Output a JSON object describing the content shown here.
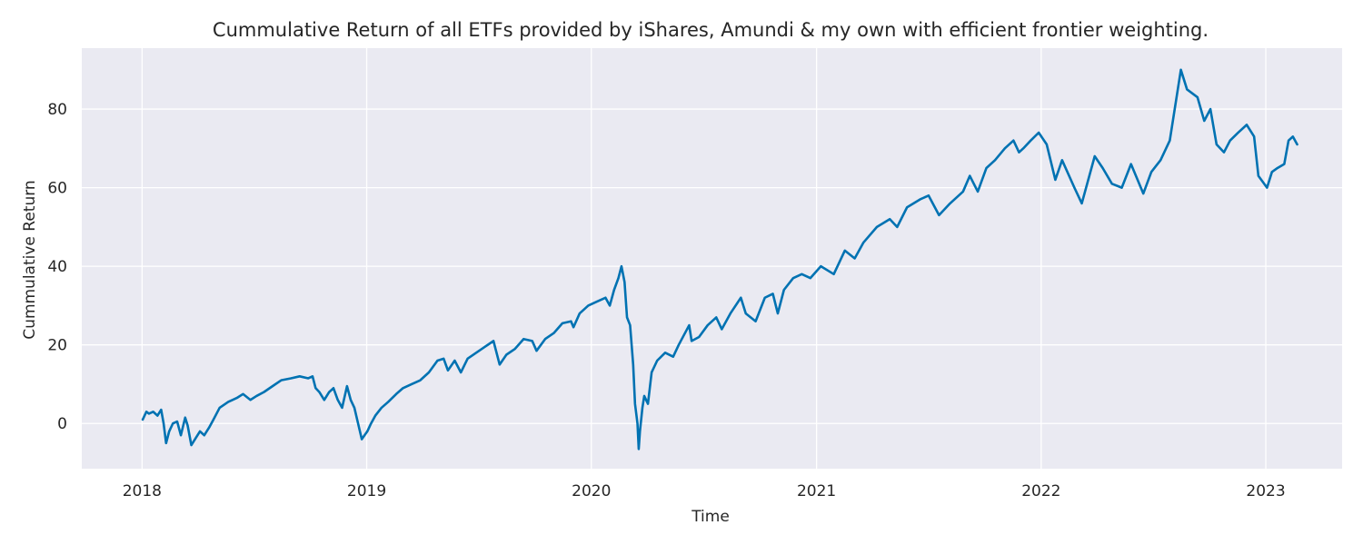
{
  "chart_data": {
    "type": "line",
    "title": "Cummulative Return of all ETFs provided by iShares, Amundi & my own with efficient frontier weighting.",
    "xlabel": "Time",
    "ylabel": "Cummulative Return",
    "x_ticks": [
      "2018",
      "2019",
      "2020",
      "2021",
      "2022",
      "2023"
    ],
    "y_ticks": [
      0,
      20,
      40,
      60,
      80
    ],
    "xlim": [
      "2017-09-25",
      "2023-05-05"
    ],
    "ylim": [
      -11.5,
      95.5
    ],
    "grid": true,
    "background": "#eaeaf2",
    "line_color": "#0072b2",
    "series": [
      {
        "values": [
          [
            "2018-01-02",
            1
          ],
          [
            "2018-01-08",
            3
          ],
          [
            "2018-01-12",
            2.5
          ],
          [
            "2018-01-19",
            3
          ],
          [
            "2018-01-26",
            2
          ],
          [
            "2018-02-01",
            3.5
          ],
          [
            "2018-02-05",
            0
          ],
          [
            "2018-02-09",
            -5
          ],
          [
            "2018-02-14",
            -2
          ],
          [
            "2018-02-20",
            0
          ],
          [
            "2018-02-27",
            0.5
          ],
          [
            "2018-03-05",
            -3
          ],
          [
            "2018-03-12",
            1.5
          ],
          [
            "2018-03-16",
            -0.5
          ],
          [
            "2018-03-22",
            -5.5
          ],
          [
            "2018-03-28",
            -4
          ],
          [
            "2018-04-05",
            -2
          ],
          [
            "2018-04-12",
            -3
          ],
          [
            "2018-04-20",
            -1
          ],
          [
            "2018-04-27",
            1
          ],
          [
            "2018-05-07",
            4
          ],
          [
            "2018-05-21",
            5.5
          ],
          [
            "2018-06-04",
            6.5
          ],
          [
            "2018-06-14",
            7.5
          ],
          [
            "2018-06-26",
            6
          ],
          [
            "2018-07-06",
            7
          ],
          [
            "2018-07-18",
            8
          ],
          [
            "2018-08-01",
            9.5
          ],
          [
            "2018-08-15",
            11
          ],
          [
            "2018-08-31",
            11.5
          ],
          [
            "2018-09-14",
            12
          ],
          [
            "2018-09-28",
            11.5
          ],
          [
            "2018-10-05",
            12
          ],
          [
            "2018-10-10",
            9
          ],
          [
            "2018-10-16",
            8
          ],
          [
            "2018-10-24",
            6
          ],
          [
            "2018-11-01",
            8
          ],
          [
            "2018-11-08",
            9
          ],
          [
            "2018-11-15",
            6
          ],
          [
            "2018-11-22",
            4
          ],
          [
            "2018-11-30",
            9.5
          ],
          [
            "2018-12-06",
            6
          ],
          [
            "2018-12-12",
            4
          ],
          [
            "2018-12-18",
            0
          ],
          [
            "2018-12-24",
            -4
          ],
          [
            "2019-01-02",
            -2
          ],
          [
            "2019-01-08",
            0
          ],
          [
            "2019-01-15",
            2
          ],
          [
            "2019-01-25",
            4
          ],
          [
            "2019-02-05",
            5.5
          ],
          [
            "2019-02-18",
            7.5
          ],
          [
            "2019-03-01",
            9
          ],
          [
            "2019-03-15",
            10
          ],
          [
            "2019-03-29",
            11
          ],
          [
            "2019-04-12",
            13
          ],
          [
            "2019-04-26",
            16
          ],
          [
            "2019-05-06",
            16.5
          ],
          [
            "2019-05-13",
            13.5
          ],
          [
            "2019-05-24",
            16
          ],
          [
            "2019-06-03",
            13
          ],
          [
            "2019-06-14",
            16.5
          ],
          [
            "2019-06-28",
            18
          ],
          [
            "2019-07-12",
            19.5
          ],
          [
            "2019-07-26",
            21
          ],
          [
            "2019-08-05",
            15
          ],
          [
            "2019-08-16",
            17.5
          ],
          [
            "2019-08-30",
            19
          ],
          [
            "2019-09-13",
            21.5
          ],
          [
            "2019-09-27",
            21
          ],
          [
            "2019-10-04",
            18.5
          ],
          [
            "2019-10-18",
            21.5
          ],
          [
            "2019-11-01",
            23
          ],
          [
            "2019-11-15",
            25.5
          ],
          [
            "2019-11-29",
            26
          ],
          [
            "2019-12-03",
            24.5
          ],
          [
            "2019-12-13",
            28
          ],
          [
            "2019-12-27",
            30
          ],
          [
            "2020-01-10",
            31
          ],
          [
            "2020-01-24",
            32
          ],
          [
            "2020-01-31",
            30
          ],
          [
            "2020-02-07",
            34
          ],
          [
            "2020-02-14",
            37
          ],
          [
            "2020-02-19",
            40
          ],
          [
            "2020-02-24",
            36
          ],
          [
            "2020-02-28",
            27
          ],
          [
            "2020-03-04",
            25
          ],
          [
            "2020-03-09",
            15
          ],
          [
            "2020-03-12",
            5
          ],
          [
            "2020-03-16",
            0
          ],
          [
            "2020-03-18",
            -6.5
          ],
          [
            "2020-03-20",
            -2
          ],
          [
            "2020-03-24",
            4
          ],
          [
            "2020-03-27",
            7
          ],
          [
            "2020-04-02",
            5
          ],
          [
            "2020-04-08",
            13
          ],
          [
            "2020-04-17",
            16
          ],
          [
            "2020-04-30",
            18
          ],
          [
            "2020-05-13",
            17
          ],
          [
            "2020-05-22",
            20
          ],
          [
            "2020-06-08",
            25
          ],
          [
            "2020-06-12",
            21
          ],
          [
            "2020-06-24",
            22
          ],
          [
            "2020-07-08",
            25
          ],
          [
            "2020-07-22",
            27
          ],
          [
            "2020-07-31",
            24
          ],
          [
            "2020-08-14",
            28
          ],
          [
            "2020-08-31",
            32
          ],
          [
            "2020-09-08",
            28
          ],
          [
            "2020-09-24",
            26
          ],
          [
            "2020-10-09",
            32
          ],
          [
            "2020-10-22",
            33
          ],
          [
            "2020-10-30",
            28
          ],
          [
            "2020-11-09",
            34
          ],
          [
            "2020-11-24",
            37
          ],
          [
            "2020-12-08",
            38
          ],
          [
            "2020-12-22",
            37
          ],
          [
            "2021-01-08",
            40
          ],
          [
            "2021-01-29",
            38
          ],
          [
            "2021-02-16",
            44
          ],
          [
            "2021-03-04",
            42
          ],
          [
            "2021-03-18",
            46
          ],
          [
            "2021-04-09",
            50
          ],
          [
            "2021-04-30",
            52
          ],
          [
            "2021-05-12",
            50
          ],
          [
            "2021-05-28",
            55
          ],
          [
            "2021-06-18",
            57
          ],
          [
            "2021-07-02",
            58
          ],
          [
            "2021-07-19",
            53
          ],
          [
            "2021-08-06",
            56
          ],
          [
            "2021-08-27",
            59
          ],
          [
            "2021-09-07",
            63
          ],
          [
            "2021-09-20",
            59
          ],
          [
            "2021-10-04",
            65
          ],
          [
            "2021-10-18",
            67
          ],
          [
            "2021-11-03",
            70
          ],
          [
            "2021-11-17",
            72
          ],
          [
            "2021-11-26",
            69
          ],
          [
            "2021-12-03",
            70
          ],
          [
            "2021-12-15",
            72
          ],
          [
            "2021-12-28",
            74
          ],
          [
            "2022-01-10",
            71
          ],
          [
            "2022-01-24",
            62
          ],
          [
            "2022-02-04",
            67
          ],
          [
            "2022-02-24",
            60
          ],
          [
            "2022-03-08",
            56
          ],
          [
            "2022-03-29",
            68
          ],
          [
            "2022-04-11",
            65
          ],
          [
            "2022-04-26",
            61
          ],
          [
            "2022-05-12",
            60
          ],
          [
            "2022-05-27",
            66
          ],
          [
            "2022-06-16",
            58.5
          ],
          [
            "2022-06-29",
            64
          ],
          [
            "2022-07-14",
            67
          ],
          [
            "2022-07-29",
            72
          ],
          [
            "2022-08-16",
            90
          ],
          [
            "2022-08-26",
            85
          ],
          [
            "2022-09-12",
            83
          ],
          [
            "2022-09-23",
            77
          ],
          [
            "2022-10-03",
            80
          ],
          [
            "2022-10-13",
            71
          ],
          [
            "2022-10-25",
            69
          ],
          [
            "2022-11-04",
            72
          ],
          [
            "2022-11-17",
            74
          ],
          [
            "2022-12-01",
            76
          ],
          [
            "2022-12-13",
            73
          ],
          [
            "2022-12-20",
            63
          ],
          [
            "2023-01-03",
            60
          ],
          [
            "2023-01-11",
            64
          ],
          [
            "2023-01-20",
            65
          ],
          [
            "2023-01-31",
            66
          ],
          [
            "2023-02-07",
            72
          ],
          [
            "2023-02-14",
            73
          ],
          [
            "2023-02-21",
            71
          ]
        ]
      }
    ]
  }
}
